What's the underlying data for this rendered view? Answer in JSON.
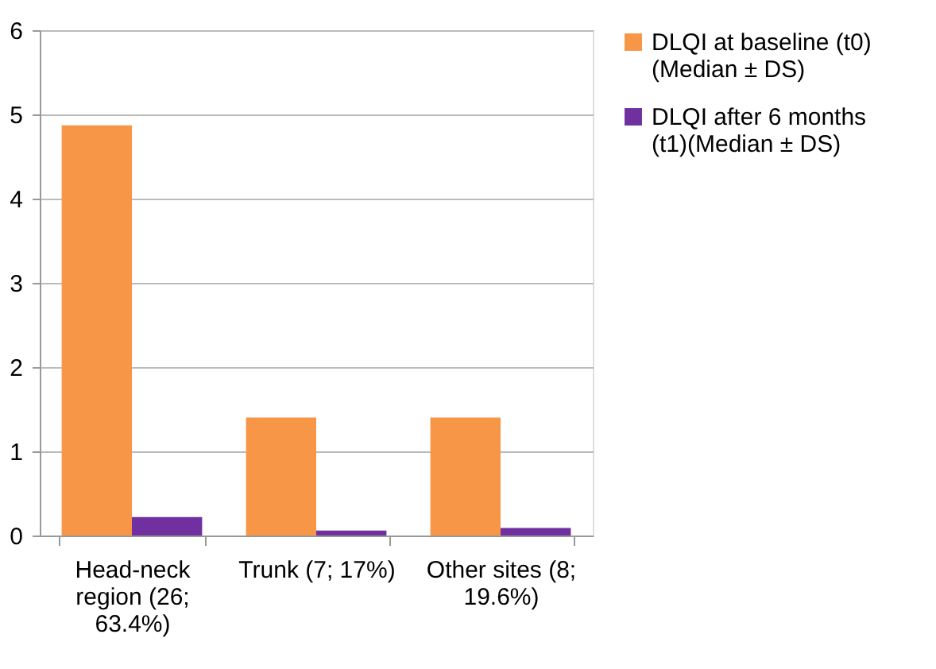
{
  "chart_data": {
    "type": "bar",
    "categories": [
      "Head-neck region (26; 63.4%)",
      "Trunk (7; 17%)",
      "Other sites (8; 19.6%)"
    ],
    "series": [
      {
        "name": "DLQI at baseline (t0) (Median ± DS)",
        "color": "#f79646",
        "values": [
          4.87,
          1.4,
          1.4
        ]
      },
      {
        "name": "DLQI after 6 months (t1)(Median ± DS)",
        "color": "#7030a0",
        "values": [
          0.22,
          0.06,
          0.09
        ]
      }
    ],
    "ylim": [
      0,
      6
    ],
    "yticks": [
      0,
      1,
      2,
      3,
      4,
      5,
      6
    ],
    "grid": "y",
    "legend": "right"
  }
}
